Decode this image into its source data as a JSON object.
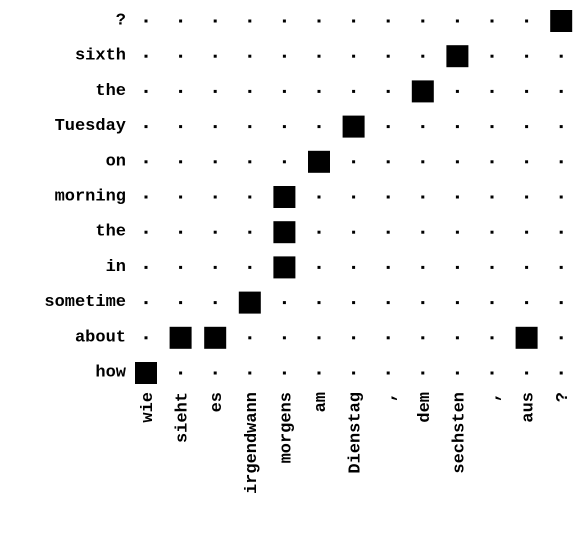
{
  "diagram": {
    "type": "alignment-matrix",
    "row_labels": [
      "how",
      "about",
      "sometime",
      "in",
      "the",
      "morning",
      "on",
      "Tuesday",
      "the",
      "sixth",
      "?"
    ],
    "column_labels": [
      "wie",
      "sieht",
      "es",
      "irgendwann",
      "morgens",
      "am",
      "Dienstag",
      ",",
      "dem",
      "sechsten",
      ",",
      "aus",
      "?"
    ],
    "alignments": [
      {
        "row": 0,
        "col": 0
      },
      {
        "row": 1,
        "col": 1
      },
      {
        "row": 1,
        "col": 2
      },
      {
        "row": 1,
        "col": 11
      },
      {
        "row": 2,
        "col": 3
      },
      {
        "row": 3,
        "col": 4
      },
      {
        "row": 4,
        "col": 4
      },
      {
        "row": 5,
        "col": 4
      },
      {
        "row": 6,
        "col": 5
      },
      {
        "row": 7,
        "col": 6
      },
      {
        "row": 8,
        "col": 8
      },
      {
        "row": 9,
        "col": 9
      },
      {
        "row": 10,
        "col": 12
      }
    ],
    "colors": {
      "mark": "#000000",
      "dot": "#000000",
      "background": "#ffffff"
    }
  }
}
